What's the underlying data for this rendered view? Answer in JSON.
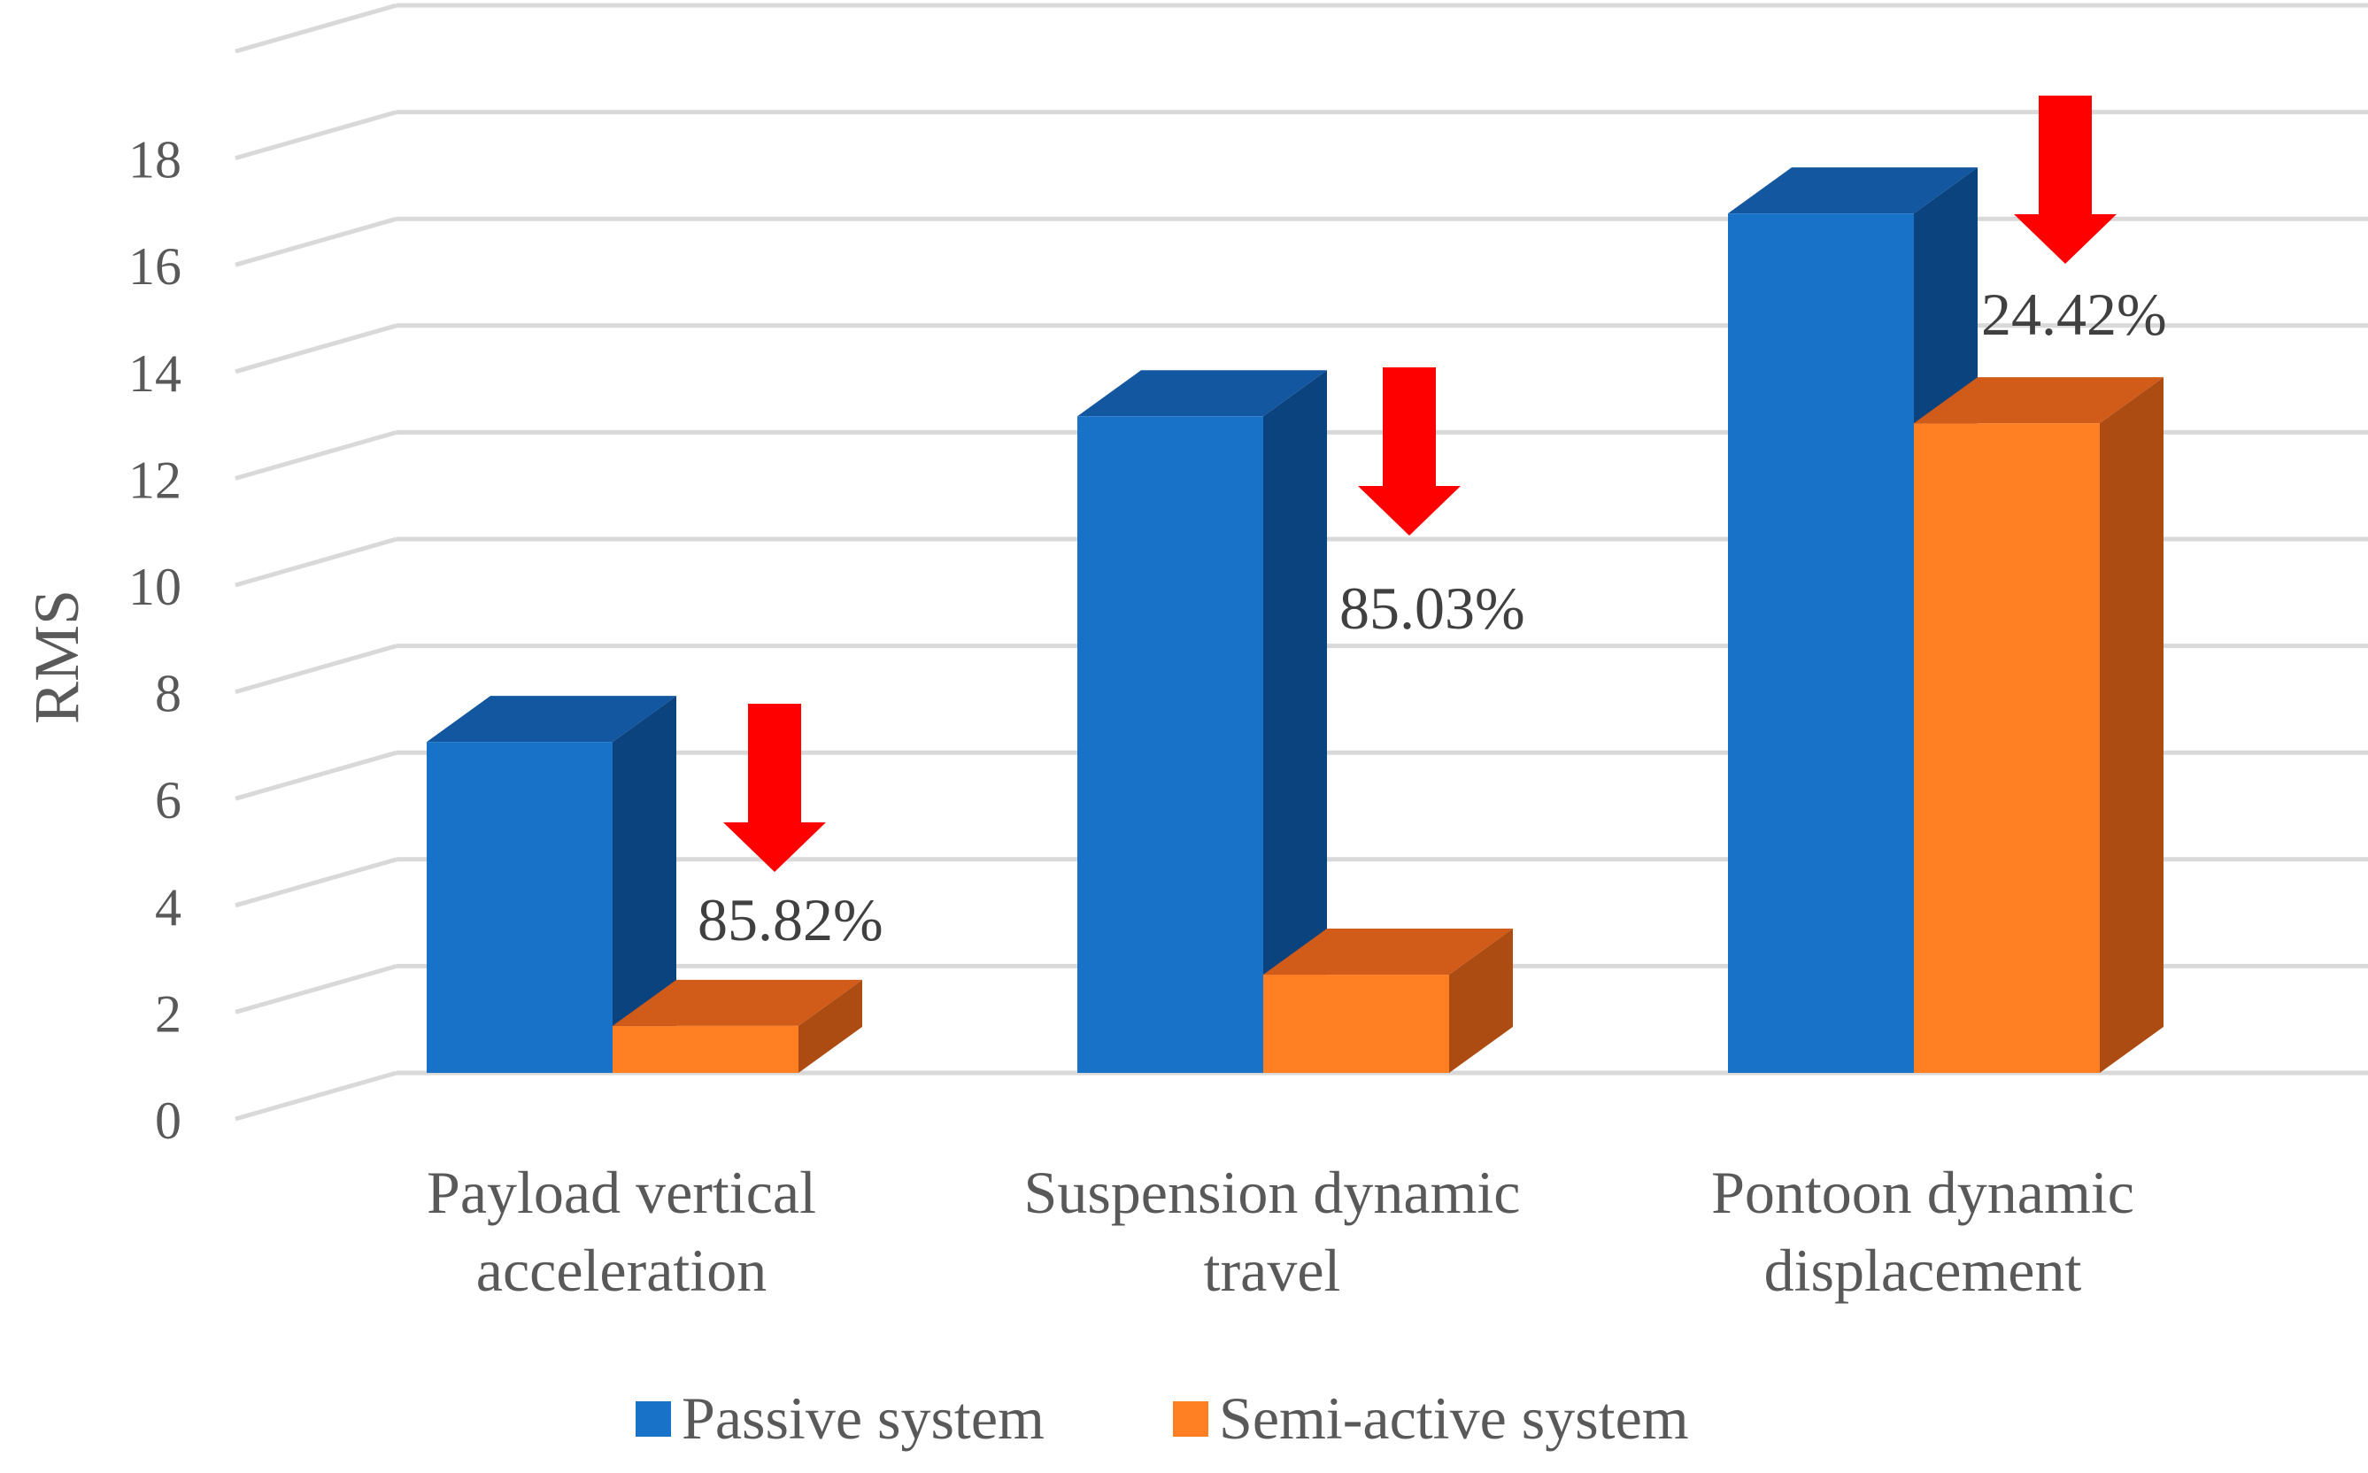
{
  "chart_data": {
    "type": "bar",
    "three_d": true,
    "title": "",
    "xlabel": "",
    "ylabel": "RMS",
    "ylim": [
      0,
      20
    ],
    "yticks": [
      0,
      2,
      4,
      6,
      8,
      10,
      12,
      14,
      16,
      18
    ],
    "categories": [
      [
        "Payload vertical",
        "acceleration"
      ],
      [
        "Suspension dynamic",
        "travel"
      ],
      [
        "Pontoon dynamic",
        "displacement"
      ]
    ],
    "series": [
      {
        "name": "Passive system",
        "values": [
          6.2,
          12.3,
          16.1
        ]
      },
      {
        "name": "Semi-active system",
        "values": [
          0.88,
          1.84,
          12.17
        ]
      }
    ],
    "annotations": [
      "85.82%",
      "85.03%",
      "24.42%"
    ],
    "legend_position": "bottom",
    "colors": {
      "passive_front": "#1772C8",
      "passive_top": "#1357A0",
      "passive_side": "#0B437E",
      "semi_front": "#FF7F22",
      "semi_top": "#D15B18",
      "semi_side": "#AD4C12",
      "arrow": "#FF0000",
      "grid": "#D9D9D9"
    }
  }
}
